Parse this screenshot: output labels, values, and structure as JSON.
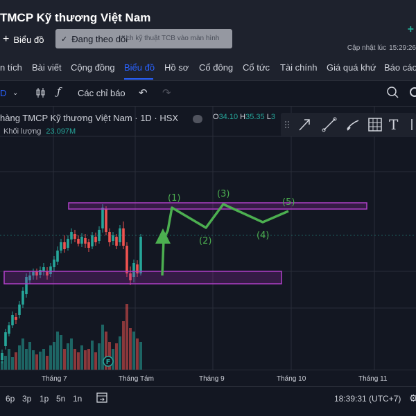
{
  "header": {
    "title": "TMCP Kỹ thương Việt Nam",
    "follow_label": "Biểu đồ",
    "following_label": "Đang theo dõi",
    "ghost_text": "ch kỹ thuật TCB vào màn hình",
    "updated_label": "Cập nhật lúc",
    "updated_time": "15:29:26"
  },
  "tabs": [
    {
      "label": "n tích"
    },
    {
      "label": "Bài viết"
    },
    {
      "label": "Cộng đồng"
    },
    {
      "label": "Biểu đồ",
      "active": true
    },
    {
      "label": "Hồ sơ"
    },
    {
      "label": "Cổ đông"
    },
    {
      "label": "Cổ tức"
    },
    {
      "label": "Tài chính"
    },
    {
      "label": "Giá quá khứ"
    },
    {
      "label": "Báo cáo"
    }
  ],
  "toolbar": {
    "interval": "D",
    "indicators_label": "Các chỉ báo"
  },
  "legend": {
    "title": "hàng TMCP Kỹ thương Việt Nam · 1D · HSX",
    "o_label": "O",
    "o_value": "34.10",
    "h_label": "H",
    "h_value": "35.35",
    "l_label": "L",
    "l_value": "3",
    "volume_label": "Khối lượng",
    "volume_value": "23.097M"
  },
  "annotations": [
    "(1)",
    "(2)",
    "(3)",
    "(4)",
    "(5)"
  ],
  "event_marker": "F",
  "x_axis": [
    "Tháng 7",
    "Tháng Tám",
    "Tháng 9",
    "Tháng 10",
    "Tháng 11"
  ],
  "ranges": [
    "6p",
    "3p",
    "1p",
    "5n",
    "1n"
  ],
  "clock": "18:39:31 (UTC+7)",
  "colors": {
    "up": "#26a69a",
    "down": "#ef5350",
    "zone_border": "#9c27b0",
    "wave": "#4caf50",
    "accent": "#2962ff"
  }
}
